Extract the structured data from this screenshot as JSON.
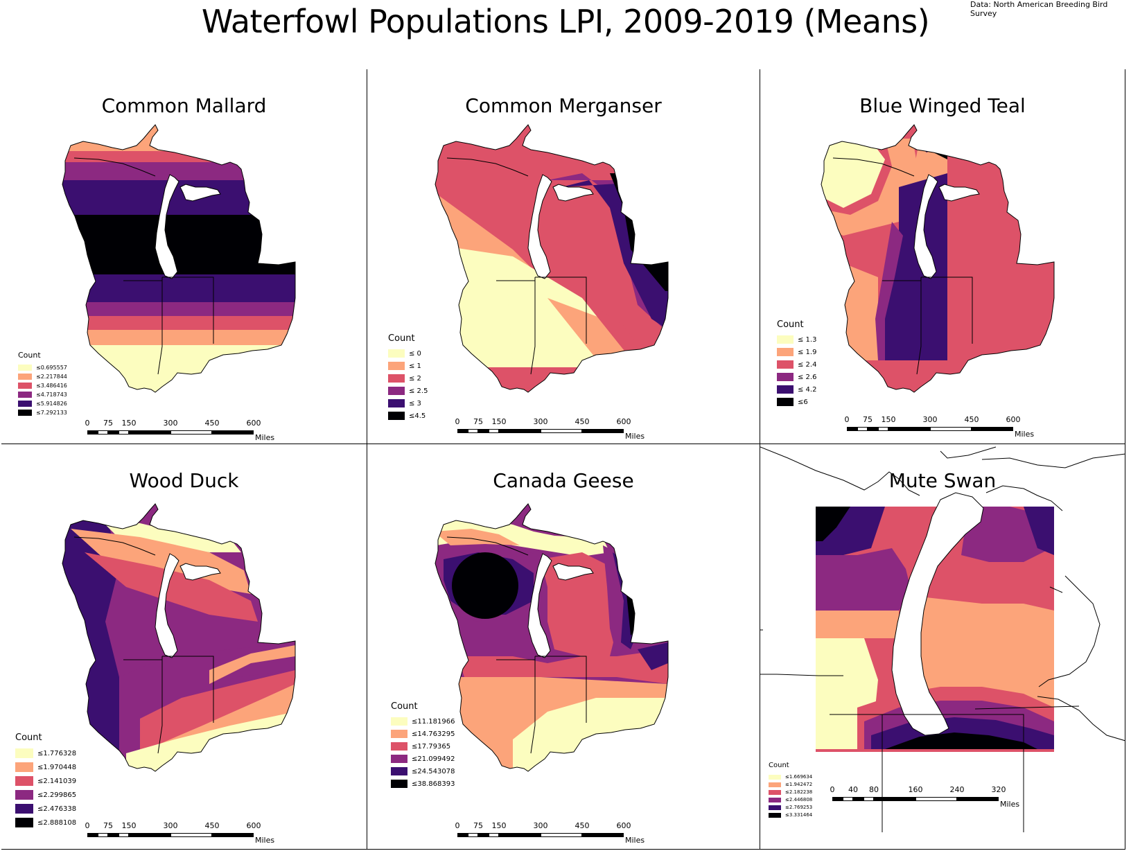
{
  "title": "Waterfowl Populations LPI, 2009-2019 (Means)",
  "source": "Data: North American Breeding Bird Survey",
  "palette": [
    "#fcfdbf",
    "#fca47a",
    "#dd5268",
    "#8c2981",
    "#3b0f70",
    "#000004"
  ],
  "panels": [
    {
      "title": "Common Mallard",
      "legend_title": "Count",
      "legend_items": [
        "≤0.695557",
        "≤2.217844",
        "≤3.486416",
        "≤4.718743",
        "≤5.914826",
        "≤7.292133"
      ],
      "scale_labels": [
        "0",
        "75",
        "150",
        "300",
        "450",
        "600"
      ],
      "scale_units": "Miles"
    },
    {
      "title": "Common Merganser",
      "legend_title": "Count",
      "legend_items": [
        "≤ 0",
        "≤ 1",
        "≤ 2",
        "≤ 2.5",
        "≤ 3",
        "≤4.5"
      ],
      "scale_labels": [
        "0",
        "75",
        "150",
        "300",
        "450",
        "600"
      ],
      "scale_units": "Miles"
    },
    {
      "title": "Blue Winged Teal",
      "legend_title": "Count",
      "legend_items": [
        "≤ 1.3",
        "≤ 1.9",
        "≤ 2.4",
        "≤ 2.6",
        "≤ 4.2",
        "≤6"
      ],
      "scale_labels": [
        "0",
        "75",
        "150",
        "300",
        "450",
        "600"
      ],
      "scale_units": "Miles"
    },
    {
      "title": "Wood Duck",
      "legend_title": "Count",
      "legend_items": [
        "≤1.776328",
        "≤1.970448",
        "≤2.141039",
        "≤2.299865",
        "≤2.476338",
        "≤2.888108"
      ],
      "scale_labels": [
        "0",
        "75",
        "150",
        "300",
        "450",
        "600"
      ],
      "scale_units": "Miles"
    },
    {
      "title": "Canada Geese",
      "legend_title": "Count",
      "legend_items": [
        "≤11.181966",
        "≤14.763295",
        "≤17.79365",
        "≤21.099492",
        "≤24.543078",
        "≤38.868393"
      ],
      "scale_labels": [
        "0",
        "75",
        "150",
        "300",
        "450",
        "600"
      ],
      "scale_units": "Miles"
    },
    {
      "title": "Mute Swan",
      "legend_title": "Count",
      "legend_items": [
        "≤1.669634",
        "≤1.942472",
        "≤2.182238",
        "≤2.446808",
        "≤2.769253",
        "≤3.331464"
      ],
      "scale_labels": [
        "0",
        "40",
        "80",
        "160",
        "240",
        "320"
      ],
      "scale_units": "Miles"
    }
  ]
}
